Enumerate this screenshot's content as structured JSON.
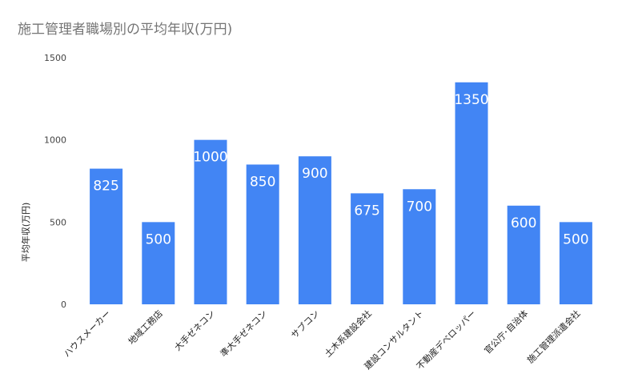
{
  "chart_data": {
    "type": "bar",
    "title": "施工管理者職場別の平均年収(万円)",
    "xlabel": "",
    "ylabel": "平均年収(万円)",
    "categories": [
      "ハウスメーカー",
      "地域工務店",
      "大手ゼネコン",
      "準大手ゼネコン",
      "サブコン",
      "土木系建設会社",
      "建設コンサルタント",
      "不動産デベロッパー",
      "官公庁･自治体",
      "施工管理派遣会社"
    ],
    "values": [
      825,
      500,
      1000,
      850,
      900,
      675,
      700,
      1350,
      600,
      500
    ],
    "data_labels": [
      "825",
      "500",
      "1000",
      "850",
      "900",
      "675",
      "700",
      "1350",
      "600",
      "500"
    ],
    "yticks": [
      "0",
      "500",
      "1000",
      "1500"
    ],
    "ylim": [
      0,
      1500
    ],
    "grid": false,
    "legend": "none",
    "colors": {
      "bar": "#4285f4",
      "title": "#757575"
    }
  }
}
